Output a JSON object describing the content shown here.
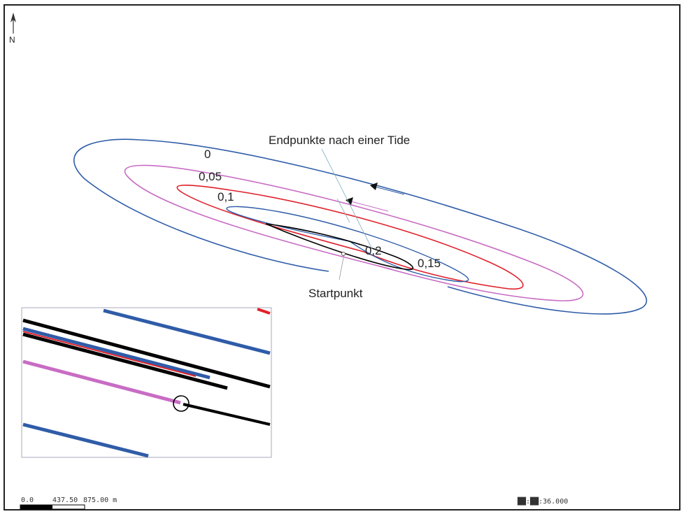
{
  "north_arrow": {
    "icon": "north-arrow-icon",
    "label": "N"
  },
  "contour_labels": [
    "0",
    "0,05",
    "0,1",
    "0,2",
    "0,15"
  ],
  "annotations": {
    "endpoints": "Endpunkte nach einer Tide",
    "start": "Startpunkt"
  },
  "scale_bar": {
    "label_0": "0.0",
    "label_1": "437.50",
    "label_2": "875.00 m"
  },
  "time_readout": "██:██:36.000",
  "colors": {
    "blue": "#2f5ca8",
    "pink": "#c86cc4",
    "red": "#e0202a",
    "black": "#000000",
    "frame": "#222222"
  }
}
